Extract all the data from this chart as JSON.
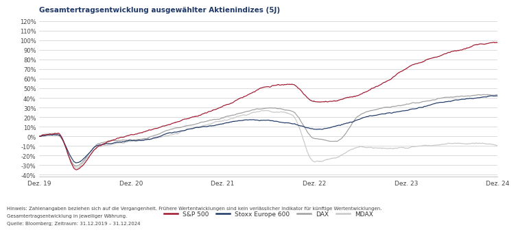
{
  "title": "Gesamtertragsentwicklung ausgewählter Aktienindizes (5J)",
  "ylim": [
    -42,
    125
  ],
  "yticks": [
    -40,
    -30,
    -20,
    -10,
    0,
    10,
    20,
    30,
    40,
    50,
    60,
    70,
    80,
    90,
    100,
    110,
    120
  ],
  "xtick_labels": [
    "Dez. 19",
    "Dez. 20",
    "Dez. 21",
    "Dez. 22",
    "Dez. 23",
    "Dez. 24"
  ],
  "series_colors": {
    "sp500": "#A0182E",
    "stoxx": "#1F3868",
    "dax": "#A0A0A0",
    "mdax": "#C8C8C8"
  },
  "series_labels": [
    "S&P 500",
    "Stoxx Europe 600",
    "DAX",
    "MDAX"
  ],
  "legend_line_colors": [
    "#A0182E",
    "#1F3868",
    "#A0A0A0",
    "#C8C8C8"
  ],
  "footnote1": "Hinweis: Zahlenangaben beziehen sich auf die Vergangenheit. Frühere Wertentwicklungen sind kein verlässlicher Indikator für künftige Wertentwicklungen.",
  "footnote2": "Gesamtertragsentwicklung in jeweiliger Währung.",
  "footnote3": "Quelle: Bloomberg; Zeitraum: 31.12.2019 – 31.12.2024",
  "bg_color": "#FFFFFF",
  "grid_color": "#CCCCCC",
  "title_color": "#1F3868",
  "n_points": 1260
}
